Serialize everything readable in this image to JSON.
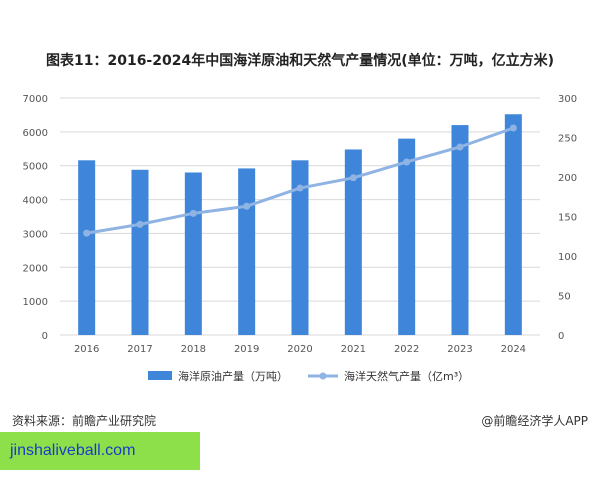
{
  "title": "图表11：2016-2024年中国海洋原油和天然气产量情况(单位：万吨，亿立方米)",
  "source": "资料来源：前瞻产业研究院",
  "credit": "@前瞻经济学人APP",
  "promo": "jinshaliveball.com",
  "colors": {
    "bar": "#3f86db",
    "line": "#8fb3e3",
    "grid": "#d9d9d9"
  },
  "chart_data": {
    "type": "bar",
    "categories": [
      "2016",
      "2017",
      "2018",
      "2019",
      "2020",
      "2021",
      "2022",
      "2023",
      "2024"
    ],
    "series": [
      {
        "name": "海洋原油产量（万吨）",
        "type": "bar",
        "axis": "left",
        "values": [
          5160,
          4880,
          4800,
          4920,
          5160,
          5480,
          5800,
          6200,
          6520
        ]
      },
      {
        "name": "海洋天然气产量（亿m³）",
        "type": "line",
        "axis": "right",
        "values": [
          129,
          140,
          154,
          163,
          186,
          199,
          219,
          238,
          262
        ]
      }
    ],
    "y_left": {
      "min": 0,
      "max": 7000,
      "ticks": [
        0,
        1000,
        2000,
        3000,
        4000,
        5000,
        6000,
        7000
      ]
    },
    "y_right": {
      "min": 0,
      "max": 300,
      "ticks": [
        0,
        50,
        100,
        150,
        200,
        250,
        300
      ]
    },
    "grid": true,
    "legend": "bottom"
  }
}
